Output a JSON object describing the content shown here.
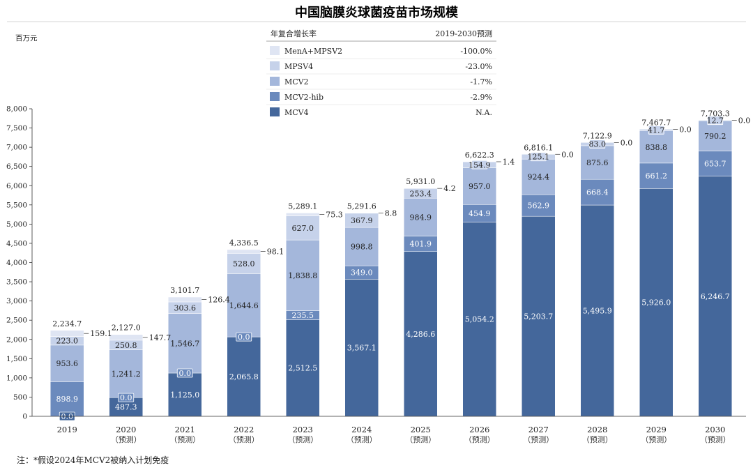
{
  "chart_data": {
    "type": "bar",
    "stacked": true,
    "title": "中国脑膜炎球菌疫苗市场规模",
    "ylabel": "百万元",
    "ylim": [
      0,
      8000
    ],
    "yticks": [
      "0",
      "500",
      "1,000",
      "1,500",
      "2,000",
      "2,500",
      "3,000",
      "3,500",
      "4,000",
      "4,500",
      "5,000",
      "5,500",
      "6,000",
      "6,500",
      "7,000",
      "7,500",
      "8,000"
    ],
    "categories": [
      "2019",
      "2020",
      "2021",
      "2022",
      "2023",
      "2024",
      "2025",
      "2026",
      "2027",
      "2028",
      "2029",
      "2030"
    ],
    "sublabels": [
      "",
      "（预测）",
      "（预测）",
      "（预测）",
      "（预测）",
      "（预测）",
      "（预测）",
      "（预测）",
      "（预测）",
      "（预测）",
      "（预测）",
      "（预测）"
    ],
    "legend_header": [
      "年复合增长率",
      "2019-2030预测"
    ],
    "series": [
      {
        "name": "MCV4",
        "cagr": "N.A.",
        "color": "#44679b",
        "text_color": "#ffffff",
        "values": [
          0.0,
          487.3,
          1125.0,
          2065.8,
          2512.5,
          3567.1,
          4286.6,
          5054.2,
          5203.7,
          5495.9,
          5926.0,
          6246.7
        ],
        "labels": [
          "0.0",
          "487.3",
          "1,125.0",
          "2,065.8",
          "2,512.5",
          "3,567.1",
          "4,286.6",
          "5,054.2",
          "5,203.7",
          "5,495.9",
          "5,926.0",
          "6,246.7"
        ]
      },
      {
        "name": "MCV2-hib",
        "cagr": "-2.9%",
        "color": "#6b8abd",
        "text_color": "#ffffff",
        "values": [
          898.9,
          0.0,
          0.0,
          0.0,
          235.5,
          349.0,
          401.9,
          454.9,
          562.9,
          668.4,
          661.2,
          653.7
        ],
        "labels": [
          "898.9",
          "0.0",
          "0.0",
          "0.0",
          "235.5",
          "349.0",
          "401.9",
          "454.9",
          "562.9",
          "668.4",
          "661.2",
          "653.7"
        ]
      },
      {
        "name": "MCV2",
        "cagr": "-1.7%",
        "color": "#a4b7db",
        "text_color": "#222222",
        "values": [
          953.6,
          1241.2,
          1546.7,
          1644.6,
          1838.8,
          998.8,
          984.9,
          957.0,
          924.4,
          875.6,
          838.8,
          790.2
        ],
        "labels": [
          "953.6",
          "1,241.2",
          "1,546.7",
          "1,644.6",
          "1,838.8",
          "998.8",
          "984.9",
          "957.0",
          "924.4",
          "875.6",
          "838.8",
          "790.2"
        ]
      },
      {
        "name": "MPSV4",
        "cagr": "-23.0%",
        "color": "#c6d2ea",
        "text_color": "#222222",
        "values": [
          223.0,
          250.8,
          303.6,
          528.0,
          627.0,
          367.9,
          253.4,
          154.9,
          125.1,
          83.0,
          41.7,
          12.7
        ],
        "labels": [
          "223.0",
          "250.8",
          "303.6",
          "528.0",
          "627.0",
          "367.9",
          "253.4",
          "154.9",
          "125.1",
          "83.0",
          "41.7",
          "12.7"
        ]
      },
      {
        "name": "MenA+MPSV2",
        "cagr": "-100.0%",
        "color": "#dfe5f3",
        "text_color": "#222222",
        "values": [
          159.1,
          147.7,
          126.4,
          98.1,
          75.3,
          8.8,
          4.2,
          1.4,
          0.0,
          0.0,
          0.0,
          0.0
        ],
        "labels": [
          "159.1",
          "147.7",
          "126.4",
          "98.1",
          "75.3",
          "8.8",
          "4.2",
          "1.4",
          "0.0",
          "0.0",
          "0.0",
          "0.0"
        ]
      }
    ],
    "totals": [
      "2,234.7",
      "2,127.0",
      "3,101.7",
      "4,336.5",
      "5,289.1",
      "5,291.6",
      "5,931.0",
      "6,622.3",
      "6,816.1",
      "7,122.9",
      "7,467.7",
      "7,703.3"
    ],
    "note": "注：*假设2024年MCV2被纳入计划免疫"
  }
}
